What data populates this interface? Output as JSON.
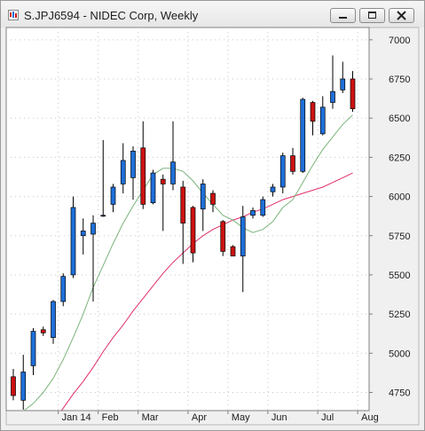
{
  "window": {
    "title": "S.JPJ6594 - NIDEC Corp, Weekly",
    "icon": "candlestick-chart-icon",
    "buttons": [
      "minimize-icon",
      "maximize-icon",
      "close-icon"
    ]
  },
  "chart_data": {
    "type": "candlestick",
    "title": "S.JPJ6594 - NIDEC Corp, Weekly",
    "y_axis_side": "right",
    "ylim": [
      4600,
      7050
    ],
    "y_ticks": [
      4750,
      5000,
      5250,
      5500,
      5750,
      6000,
      6250,
      6500,
      6750,
      7000
    ],
    "y_tick_labels": [
      "4750",
      "5000",
      "5250",
      "5500",
      "5750",
      "6000",
      "6250",
      "6500",
      "6750",
      "7000"
    ],
    "x_tick_labels": [
      {
        "label": "Jan 14",
        "week": 5
      },
      {
        "label": "Feb",
        "week": 9
      },
      {
        "label": "Mar",
        "week": 13
      },
      {
        "label": "Apr",
        "week": 18
      },
      {
        "label": "May",
        "week": 22
      },
      {
        "label": "Jun",
        "week": 26
      },
      {
        "label": "Jul",
        "week": 31
      },
      {
        "label": "Aug",
        "week": 35
      }
    ],
    "grid": "dotted",
    "colors": {
      "up": "#1e6fd9",
      "down": "#cc1111",
      "wick": "#000000",
      "ma_fast": "#7bb47b",
      "ma_slow": "#e0306a"
    },
    "candles": [
      {
        "open": 4850,
        "high": 4900,
        "low": 4700,
        "close": 4730
      },
      {
        "open": 4700,
        "high": 4990,
        "low": 4640,
        "close": 4880
      },
      {
        "open": 4920,
        "high": 5160,
        "low": 4860,
        "close": 5140
      },
      {
        "open": 5150,
        "high": 5170,
        "low": 5110,
        "close": 5130
      },
      {
        "open": 5100,
        "high": 5340,
        "low": 5060,
        "close": 5330
      },
      {
        "open": 5330,
        "high": 5510,
        "low": 5300,
        "close": 5490
      },
      {
        "open": 5500,
        "high": 6000,
        "low": 5480,
        "close": 5930
      },
      {
        "open": 5750,
        "high": 5860,
        "low": 5630,
        "close": 5780
      },
      {
        "open": 5760,
        "high": 5880,
        "low": 5330,
        "close": 5830
      },
      {
        "open": 5880,
        "high": 6360,
        "low": 5870,
        "close": 5880
      },
      {
        "open": 5950,
        "high": 6080,
        "low": 5900,
        "close": 6060
      },
      {
        "open": 6080,
        "high": 6340,
        "low": 6020,
        "close": 6230
      },
      {
        "open": 6120,
        "high": 6320,
        "low": 5980,
        "close": 6290
      },
      {
        "open": 6310,
        "high": 6480,
        "low": 5920,
        "close": 5950
      },
      {
        "open": 5960,
        "high": 6170,
        "low": 5950,
        "close": 6150
      },
      {
        "open": 6110,
        "high": 6140,
        "low": 5780,
        "close": 6080
      },
      {
        "open": 6080,
        "high": 6480,
        "low": 6040,
        "close": 6220
      },
      {
        "open": 6060,
        "high": 6100,
        "low": 5570,
        "close": 5830
      },
      {
        "open": 5930,
        "high": 5940,
        "low": 5580,
        "close": 5640
      },
      {
        "open": 5920,
        "high": 6110,
        "low": 5780,
        "close": 6080
      },
      {
        "open": 6020,
        "high": 6040,
        "low": 5900,
        "close": 5950
      },
      {
        "open": 5840,
        "high": 5850,
        "low": 5620,
        "close": 5650
      },
      {
        "open": 5680,
        "high": 5690,
        "low": 5620,
        "close": 5620
      },
      {
        "open": 5620,
        "high": 5940,
        "low": 5390,
        "close": 5870
      },
      {
        "open": 5880,
        "high": 5930,
        "low": 5860,
        "close": 5910
      },
      {
        "open": 5880,
        "high": 6000,
        "low": 5870,
        "close": 5980
      },
      {
        "open": 6030,
        "high": 6080,
        "low": 6000,
        "close": 6060
      },
      {
        "open": 6060,
        "high": 6280,
        "low": 6020,
        "close": 6260
      },
      {
        "open": 6260,
        "high": 6310,
        "low": 6140,
        "close": 6160
      },
      {
        "open": 6160,
        "high": 6630,
        "low": 6150,
        "close": 6620
      },
      {
        "open": 6600,
        "high": 6610,
        "low": 6390,
        "close": 6480
      },
      {
        "open": 6400,
        "high": 6640,
        "low": 6390,
        "close": 6570
      },
      {
        "open": 6600,
        "high": 6900,
        "low": 6560,
        "close": 6670
      },
      {
        "open": 6680,
        "high": 6860,
        "low": 6660,
        "close": 6750
      },
      {
        "open": 6750,
        "high": 6800,
        "low": 6540,
        "close": 6560
      }
    ],
    "ma_fast": [
      4610,
      4630,
      4680,
      4750,
      4840,
      4960,
      5100,
      5250,
      5420,
      5560,
      5700,
      5830,
      5940,
      6040,
      6140,
      6180,
      6180,
      6160,
      6100,
      6020,
      5950,
      5880,
      5850,
      5800,
      5770,
      5790,
      5840,
      5930,
      5980,
      6090,
      6200,
      6300,
      6380,
      6460,
      6520
    ],
    "ma_slow": [
      null,
      null,
      null,
      null,
      4560,
      4650,
      4740,
      4820,
      4910,
      5010,
      5100,
      5180,
      5270,
      5350,
      5430,
      5510,
      5580,
      5640,
      5700,
      5750,
      5790,
      5820,
      5850,
      5870,
      5900,
      5920,
      5950,
      5980,
      6000,
      6020,
      6040,
      6060,
      6090,
      6120,
      6150
    ]
  }
}
